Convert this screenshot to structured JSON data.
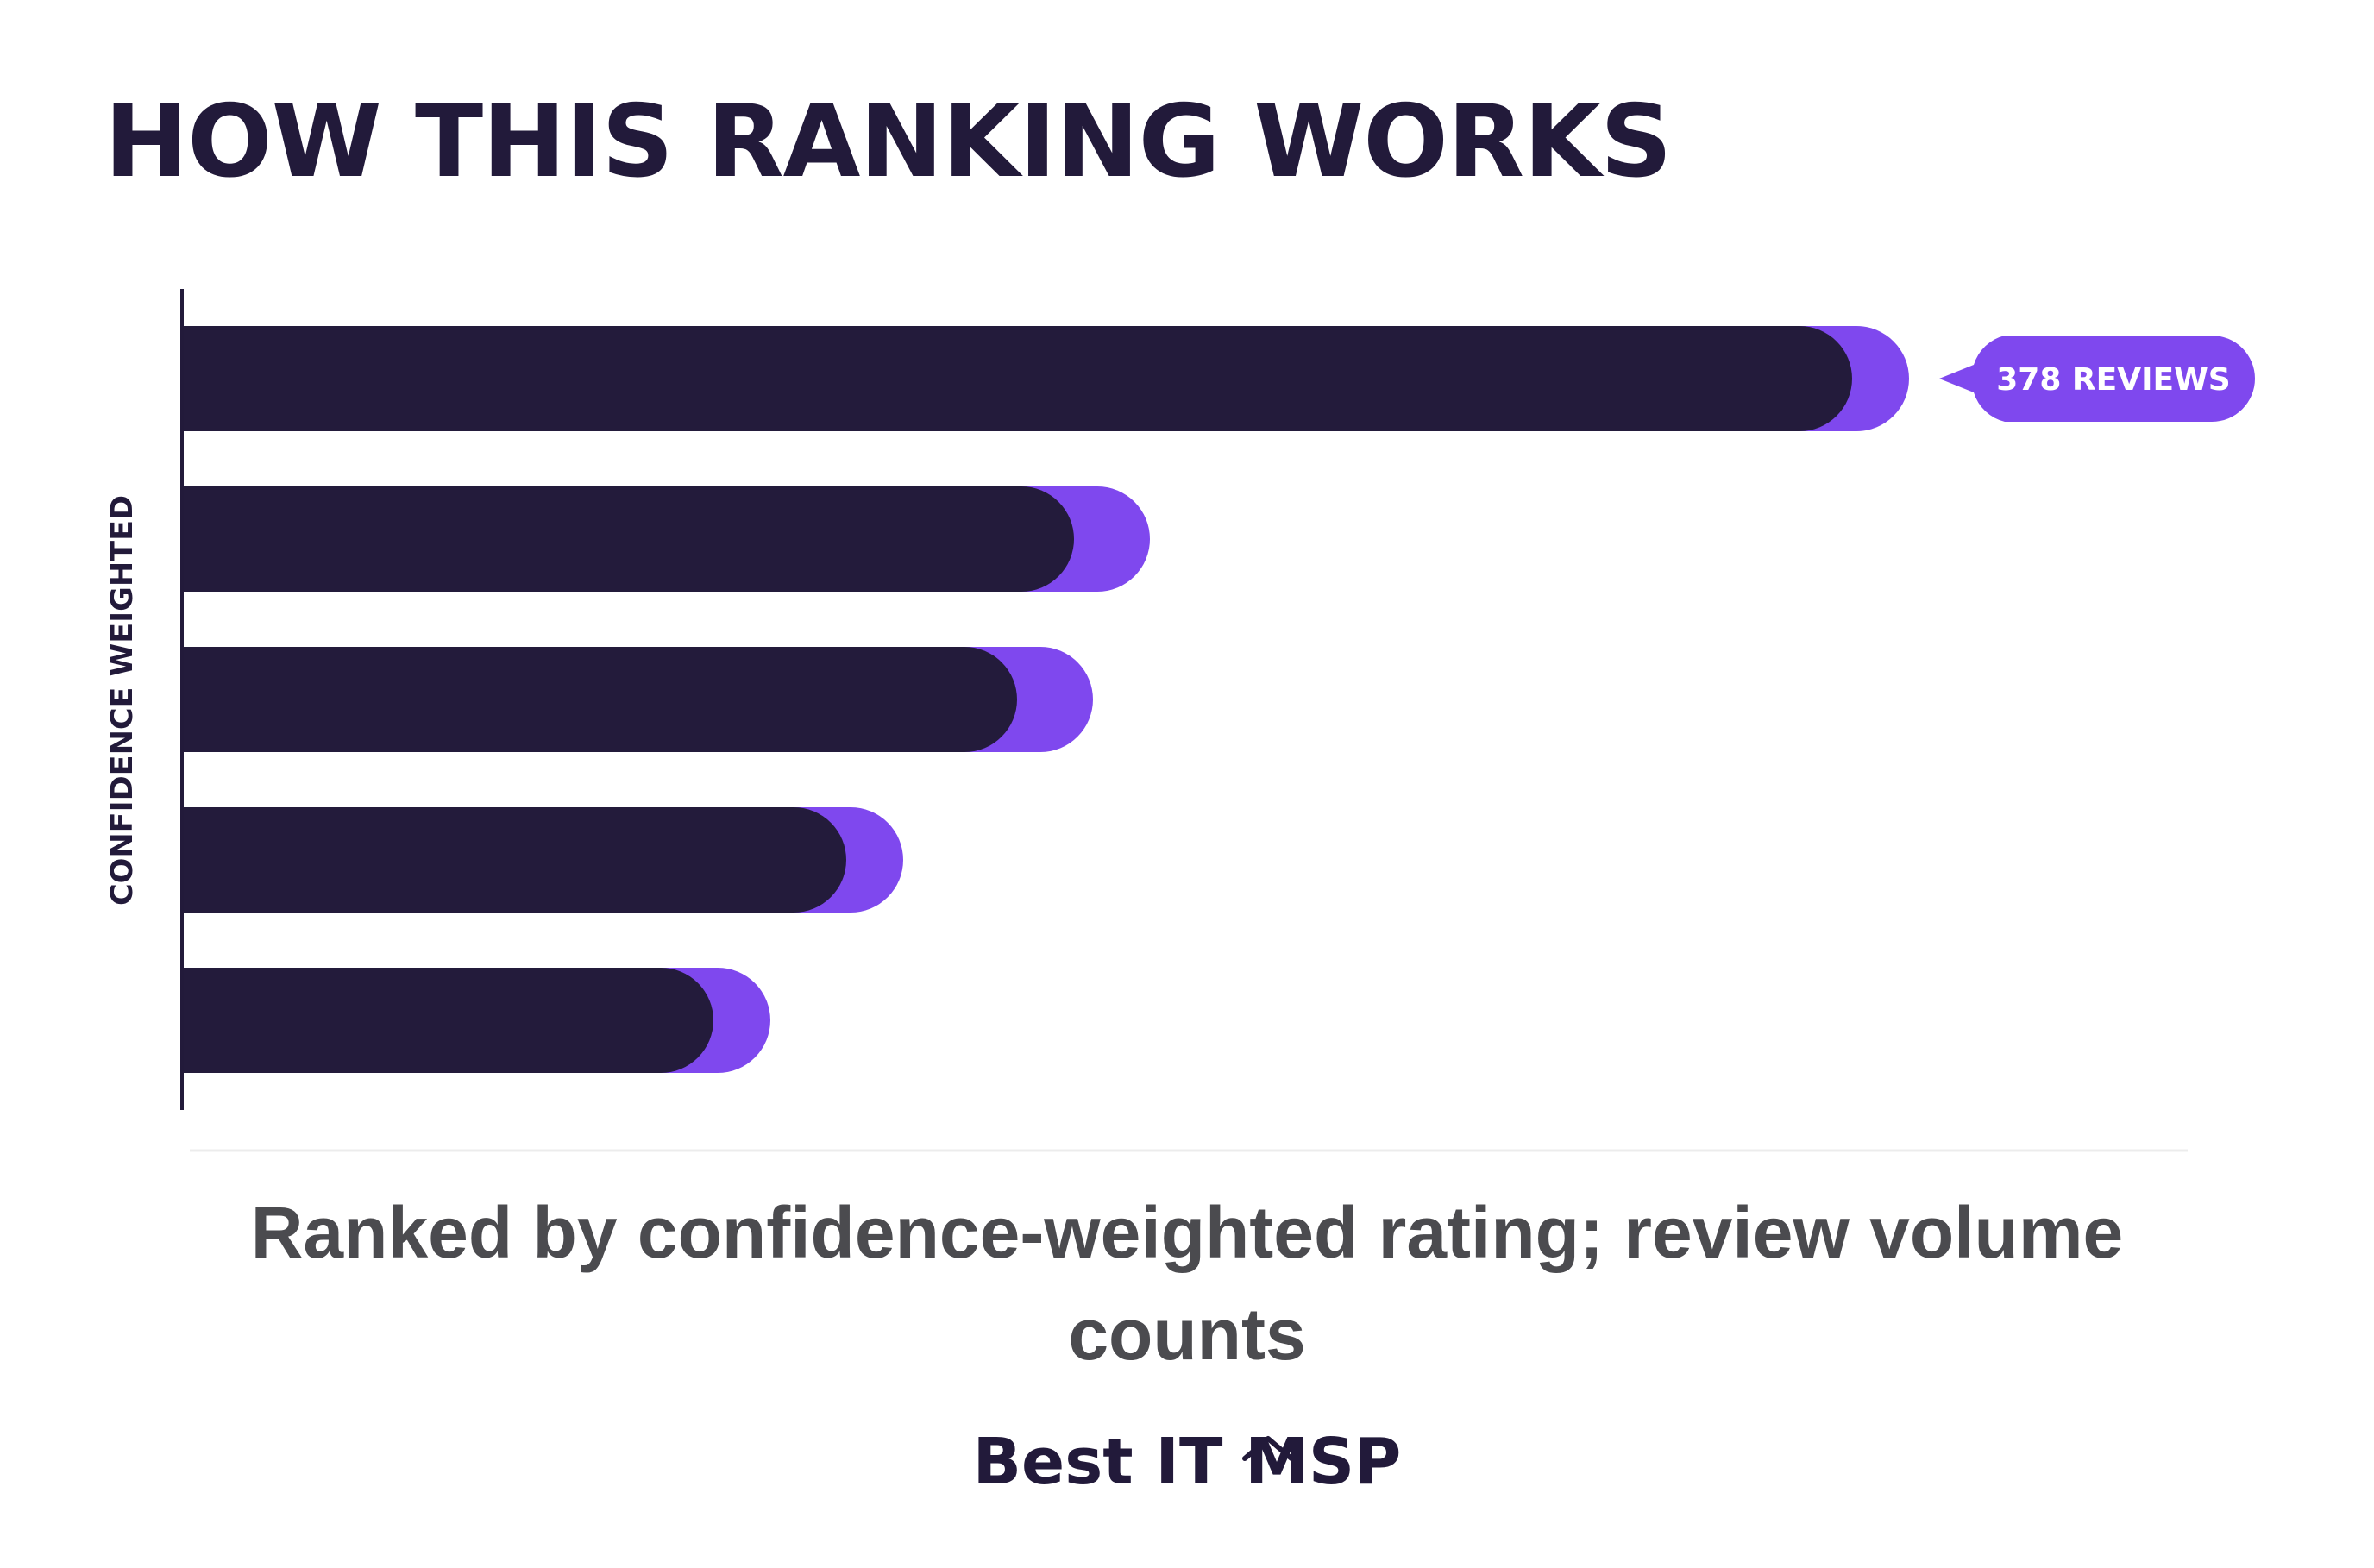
{
  "title": "HOW THIS RANKING WORKS",
  "caption": "Ranked by confidence-weighted rating; review volume counts",
  "brand": {
    "name": "Best IT MSP",
    "icon": "chevron-up-icon"
  },
  "colors": {
    "dark": "#231b3b",
    "purple": "#7f48ee",
    "caption": "#4b4b4f"
  },
  "chart_data": {
    "type": "bar",
    "orientation": "horizontal",
    "ylabel": "CONFIDENCE WEIGHTED",
    "xlabel": "",
    "categories": [
      "",
      "",
      "",
      "",
      ""
    ],
    "series": [
      {
        "values": [
          0.88,
          0.47,
          0.44,
          0.35,
          0.28
        ]
      },
      {
        "values": [
          0.03,
          0.04,
          0.04,
          0.03,
          0.03
        ]
      }
    ],
    "xlim": [
      0,
      1
    ],
    "annotations": [
      {
        "bar_index": 0,
        "text": "378 REVIEWS"
      }
    ],
    "grid": false,
    "legend": "none"
  }
}
